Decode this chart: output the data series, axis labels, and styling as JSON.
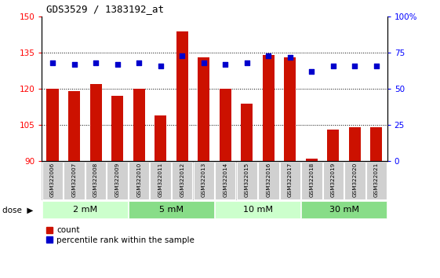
{
  "title": "GDS3529 / 1383192_at",
  "samples": [
    "GSM322006",
    "GSM322007",
    "GSM322008",
    "GSM322009",
    "GSM322010",
    "GSM322011",
    "GSM322012",
    "GSM322013",
    "GSM322014",
    "GSM322015",
    "GSM322016",
    "GSM322017",
    "GSM322018",
    "GSM322019",
    "GSM322020",
    "GSM322021"
  ],
  "counts": [
    120,
    119,
    122,
    117,
    120,
    109,
    144,
    133,
    120,
    114,
    134,
    133,
    91,
    103,
    104,
    104
  ],
  "percentiles": [
    68,
    67,
    68,
    67,
    68,
    66,
    73,
    68,
    67,
    68,
    73,
    72,
    62,
    66,
    66,
    66
  ],
  "dose_groups": [
    {
      "label": "2 mM",
      "start": 0,
      "end": 3
    },
    {
      "label": "5 mM",
      "start": 4,
      "end": 7
    },
    {
      "label": "10 mM",
      "start": 8,
      "end": 11
    },
    {
      "label": "30 mM",
      "start": 12,
      "end": 15
    }
  ],
  "dose_colors": [
    "#ccffcc",
    "#88dd88",
    "#ccffcc",
    "#88dd88"
  ],
  "bar_color": "#cc1100",
  "dot_color": "#0000cc",
  "ylim_left": [
    90,
    150
  ],
  "ylim_right": [
    0,
    100
  ],
  "yticks_left": [
    90,
    105,
    120,
    135,
    150
  ],
  "yticks_right": [
    0,
    25,
    50,
    75,
    100
  ],
  "grid_color": "#000000",
  "legend_count": "count",
  "legend_percentile": "percentile rank within the sample"
}
